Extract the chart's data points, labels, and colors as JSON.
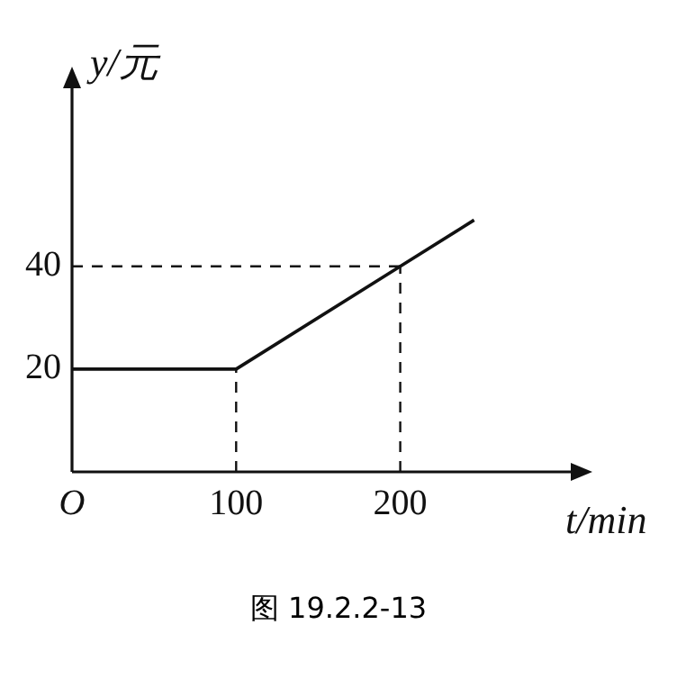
{
  "chart_data": {
    "type": "line",
    "x": [
      0,
      100,
      200,
      245
    ],
    "series": [
      {
        "color": "#111111",
        "values": [
          20,
          20,
          40,
          49
        ]
      }
    ],
    "xlim": [
      0,
      305
    ],
    "ylim": [
      0,
      75
    ],
    "xticks": [
      {
        "value": 0,
        "label": "O"
      },
      100,
      200
    ],
    "yticks": [
      20,
      40
    ],
    "xlabel": "t/min",
    "ylabel": "y/元",
    "ref_lines": [
      {
        "axis": "x",
        "value": 100,
        "line_style": "dashed"
      },
      {
        "axis": "x",
        "value": 200,
        "line_style": "dashed"
      },
      {
        "axis": "y",
        "value": 40,
        "line_style": "dashed"
      }
    ],
    "grid": false,
    "legend": false,
    "marker": "none",
    "line_style": "solid",
    "annotations": [
      "图 19.2.2-13"
    ]
  }
}
